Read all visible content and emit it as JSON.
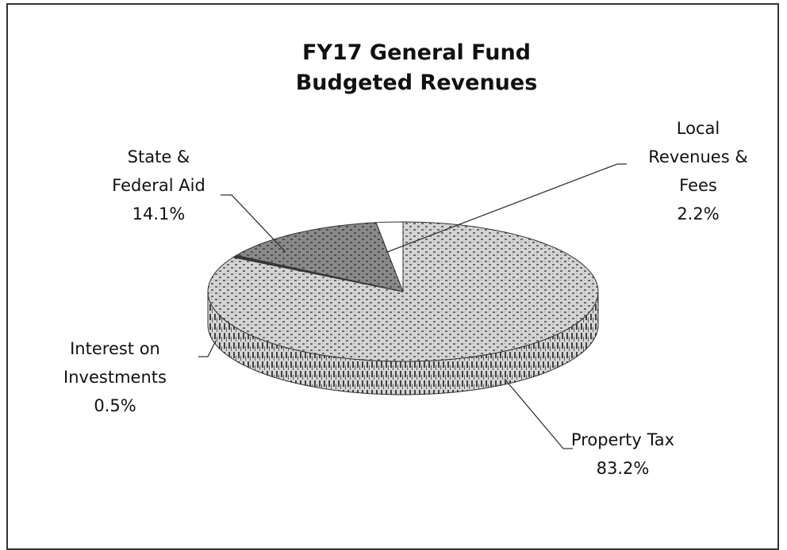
{
  "chart_data": {
    "type": "pie",
    "title": "FY17 General Fund Budgeted Revenues",
    "categories": [
      "Property Tax",
      "Interest on Investments",
      "State & Federal Aid",
      "Local Revenues & Fees"
    ],
    "values": [
      83.2,
      0.5,
      14.1,
      2.2
    ],
    "value_labels": [
      "83.2%",
      "0.5%",
      "14.1%",
      "2.2%"
    ],
    "colors": [
      "#d4d4d4",
      "#3a3a3a",
      "#8a8a8a",
      "#ffffff"
    ],
    "three_d": true
  }
}
